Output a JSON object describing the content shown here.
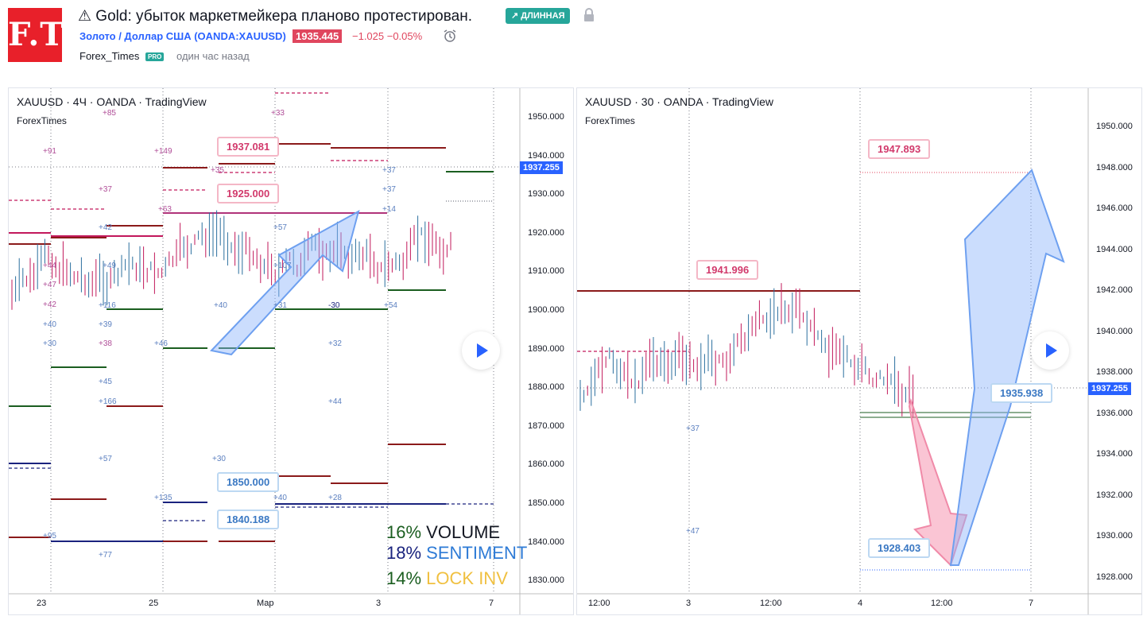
{
  "header": {
    "logo_text": "F.T.",
    "title": "⚠ Gold: убыток маркетмейкера планово протестирован.",
    "badge": "↗ ДЛИННАЯ",
    "symbol": "Золото / Доллар США (OANDA:XAUUSD)",
    "price": "1935.445",
    "change": "−1.025  −0.05%",
    "author": "Forex_Times",
    "author_badge": "PRO",
    "time_ago": "один час назад"
  },
  "left_chart": {
    "title": "XAUUSD · 4Ч · OANDA · TradingView",
    "subtitle": "ForexTimes",
    "y_ticks": [
      "1950.000",
      "1940.000",
      "1930.000",
      "1920.000",
      "1910.000",
      "1900.000",
      "1890.000",
      "1880.000",
      "1870.000",
      "1860.000",
      "1850.000",
      "1840.000",
      "1830.000"
    ],
    "x_ticks": [
      "23",
      "25",
      "Мар",
      "3",
      "7"
    ],
    "current_price": "1937.255",
    "annotations": [
      "1937.081",
      "1925.000",
      "1850.000",
      "1840.188"
    ],
    "legend": {
      "volume": "16%",
      "volume_label": "VOLUME",
      "sentiment": "18%",
      "sentiment_label": "SENTIMENT",
      "lock": "14%",
      "lock_label": "LOCK INV"
    }
  },
  "right_chart": {
    "title": "XAUUSD · 30 · OANDA · TradingView",
    "subtitle": "ForexTimes",
    "y_ticks": [
      "1950.000",
      "1948.000",
      "1946.000",
      "1944.000",
      "1942.000",
      "1940.000",
      "1938.000",
      "1936.000",
      "1934.000",
      "1932.000",
      "1930.000",
      "1928.000"
    ],
    "x_ticks": [
      "12:00",
      "3",
      "12:00",
      "4",
      "12:00",
      "7"
    ],
    "current_price": "1937.255",
    "annotations": [
      "1947.893",
      "1941.996",
      "1935.938",
      "1928.403"
    ]
  },
  "colors": {
    "accent": "#2962ff",
    "down": "#e0465e",
    "up": "#26a69a",
    "pink": "#d23a6c",
    "blue": "#3a78c3"
  }
}
